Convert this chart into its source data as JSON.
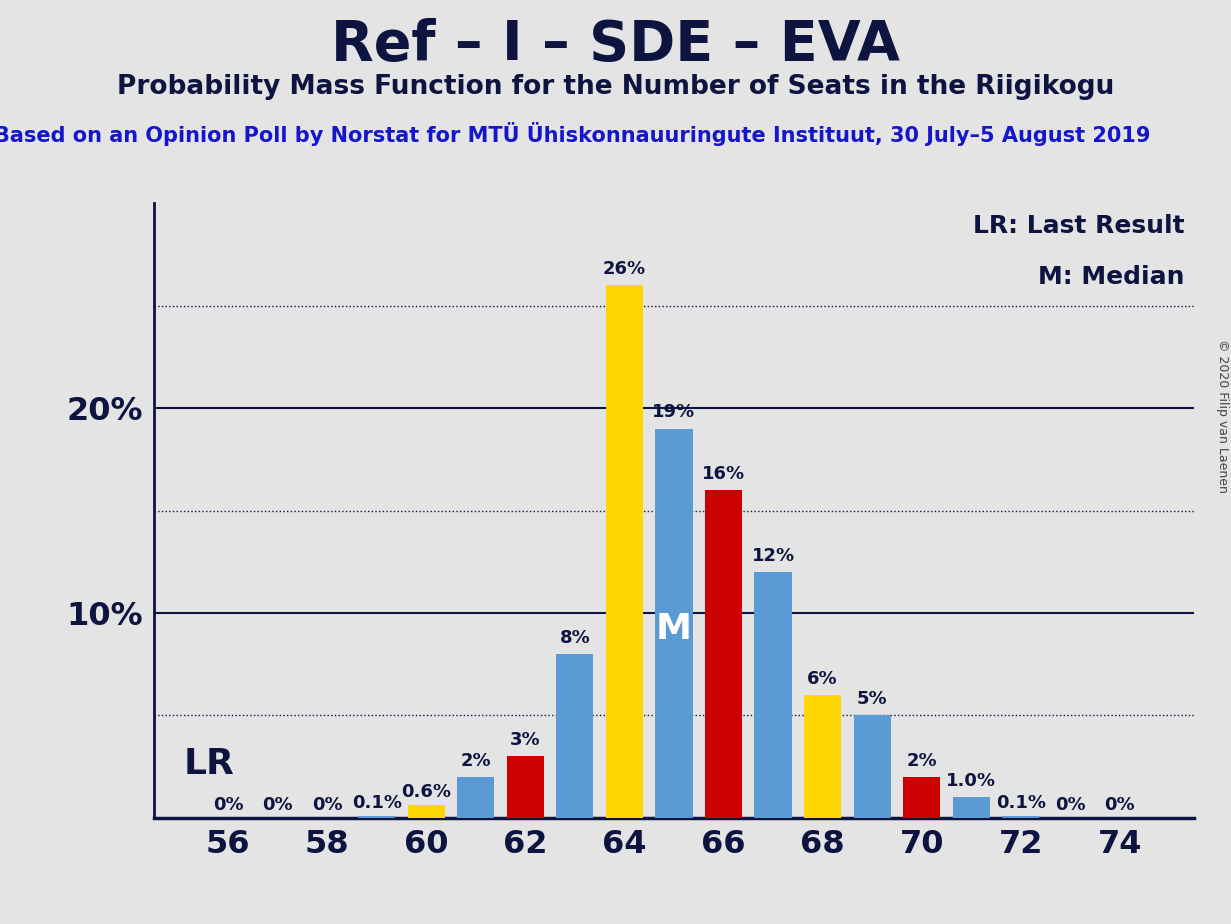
{
  "title": "Ref – I – SDE – EVA",
  "subtitle": "Probability Mass Function for the Number of Seats in the Riigikogu",
  "source_text": "Based on an Opinion Poll by Norstat for MTÜ Ühiskonnauuringute Instituut, 30 July–5 August 2019",
  "copyright_text": "© 2020 Filip van Laenen",
  "lr_label": "LR: Last Result",
  "median_label": "M: Median",
  "seats": [
    56,
    57,
    58,
    59,
    60,
    61,
    62,
    63,
    64,
    65,
    66,
    67,
    68,
    69,
    70,
    71,
    72,
    73,
    74
  ],
  "probabilities": [
    0.0,
    0.0,
    0.0,
    0.1,
    0.6,
    2.0,
    3.0,
    8.0,
    26.0,
    19.0,
    16.0,
    12.0,
    6.0,
    5.0,
    2.0,
    1.0,
    0.1,
    0.0,
    0.0
  ],
  "bar_colors_by_seat": {
    "56": "#5B9BD5",
    "57": "#5B9BD5",
    "58": "#5B9BD5",
    "59": "#5B9BD5",
    "60": "#FFD700",
    "61": "#5B9BD5",
    "62": "#CC0000",
    "63": "#5B9BD5",
    "64": "#FFD700",
    "65": "#5B9BD5",
    "66": "#CC0000",
    "67": "#5B9BD5",
    "68": "#FFD700",
    "69": "#5B9BD5",
    "70": "#CC0000",
    "71": "#5B9BD5",
    "72": "#5B9BD5",
    "73": "#5B9BD5",
    "74": "#5B9BD5"
  },
  "bar_labels": {
    "56": "0%",
    "57": "0%",
    "58": "0%",
    "59": "0.1%",
    "60": "0.6%",
    "61": "2%",
    "62": "3%",
    "63": "8%",
    "64": "26%",
    "65": "19%",
    "66": "16%",
    "67": "12%",
    "68": "6%",
    "69": "5%",
    "70": "2%",
    "71": "1.0%",
    "72": "0.1%",
    "73": "0%",
    "74": "0%"
  },
  "median_seat": 65,
  "background_color": "#E4E4E4",
  "title_color": "#0D1440",
  "source_color": "#1515CC",
  "ylim": [
    0,
    30
  ],
  "xlim": [
    54.5,
    75.5
  ],
  "xticks": [
    56,
    58,
    60,
    62,
    64,
    66,
    68,
    70,
    72,
    74
  ],
  "ytick_labels": [
    "",
    "10%",
    "20%"
  ],
  "ytick_positions": [
    0,
    10,
    20
  ],
  "solid_gridlines": [
    10,
    20
  ],
  "dotted_gridlines": [
    5,
    15,
    25
  ],
  "title_fontsize": 40,
  "subtitle_fontsize": 19,
  "source_fontsize": 15,
  "bar_label_fontsize": 13,
  "tick_fontsize": 23,
  "legend_fontsize": 18,
  "median_marker_fontsize": 26,
  "lr_marker_fontsize": 26,
  "bar_width": 0.75
}
